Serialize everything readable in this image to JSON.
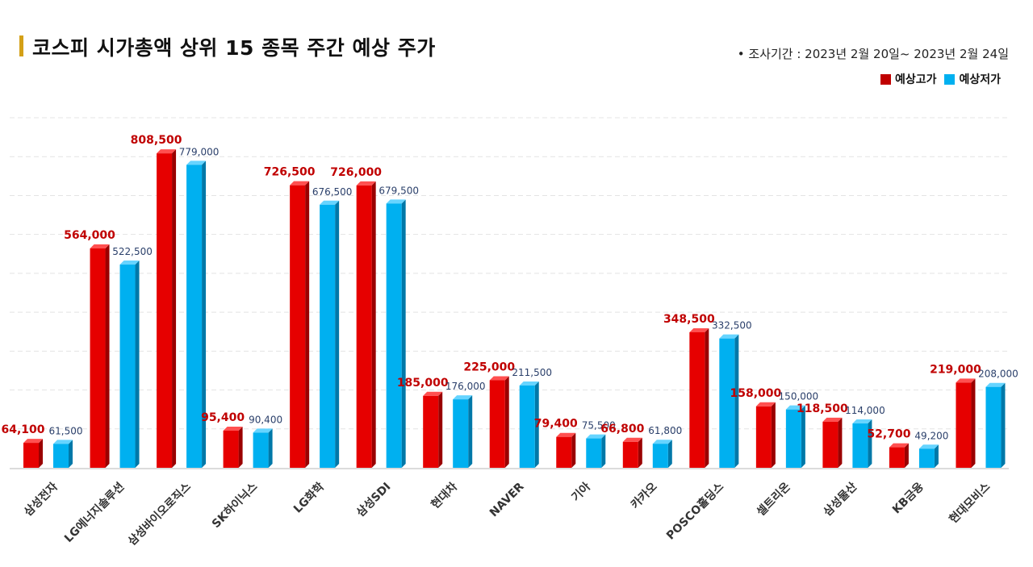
{
  "header": {
    "title": "코스피 시가총액 상위 15 종목 주간 예상 주가",
    "period": "•  조사기간 : 2023년 2월 20일~ 2023년 2월 24일"
  },
  "colors": {
    "high": "#e60000",
    "low": "#00b0f0",
    "accent": "#d4a017"
  },
  "chart_data": {
    "type": "bar",
    "title": "코스피 시가총액 상위 15 종목 주간 예상 주가",
    "categories": [
      "삼성전자",
      "LG에너지솔루션",
      "삼성바이오로직스",
      "SK하이닉스",
      "LG화학",
      "삼성SDI",
      "현대차",
      "NAVER",
      "기아",
      "카카오",
      "POSCO홀딩스",
      "셀트리온",
      "삼성물산",
      "KB금융",
      "현대모비스"
    ],
    "series": [
      {
        "name": "예상고가",
        "values": [
          64100,
          564000,
          808500,
          95400,
          726500,
          726000,
          185000,
          225000,
          79400,
          66800,
          348500,
          158000,
          118500,
          52700,
          219000
        ],
        "labels": [
          "64,100",
          "564,000",
          "808,500",
          "95,400",
          "726,500",
          "726,000",
          "185,000",
          "225,000",
          "79,400",
          "66,800",
          "348,500",
          "158,000",
          "118,500",
          "52,700",
          "219,000"
        ]
      },
      {
        "name": "예상저가",
        "values": [
          61500,
          522500,
          779000,
          90400,
          676500,
          679500,
          176000,
          211500,
          75500,
          61800,
          332500,
          150000,
          114000,
          49200,
          208000
        ],
        "labels": [
          "61,500",
          "522,500",
          "779,000",
          "90,400",
          "676,500",
          "679,500",
          "176,000",
          "211,500",
          "75,500",
          "61,800",
          "332,500",
          "150,000",
          "114,000",
          "49,200",
          "208,000"
        ]
      }
    ],
    "ylim": [
      0,
      900000
    ],
    "grid": true,
    "legend": "top-right"
  }
}
